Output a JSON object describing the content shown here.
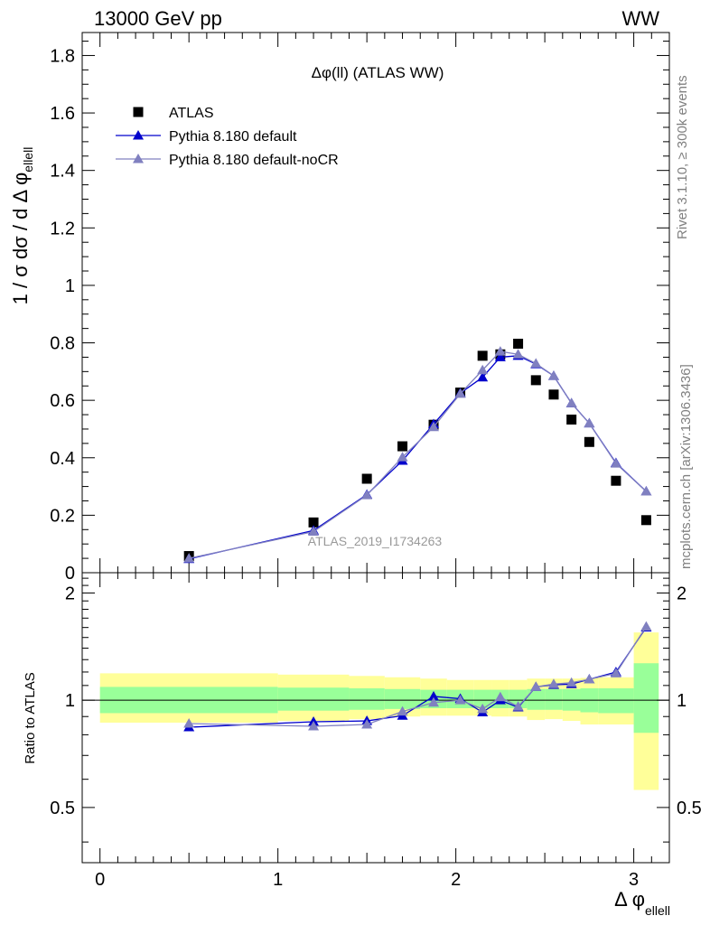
{
  "header": {
    "left": "13000 GeV pp",
    "right": "WW"
  },
  "side_labels": {
    "rivet": "Rivet 3.1.10, ≥ 300k events",
    "mcplots": "mcplots.cern.ch [arXiv:1306.3436]"
  },
  "chart_data": {
    "type": "scatter",
    "title": "Δφ(ll) (ATLAS WW)",
    "watermark": "ATLAS_2019_I1734263",
    "xlabel": "Δ φ",
    "xlabel_sub": "ellell",
    "ylabel": "1 / σ  dσ / d Δ φ",
    "ylabel_sub": "ellell",
    "ratio_ylabel": "Ratio to ATLAS",
    "xlim": [
      -0.1,
      3.2
    ],
    "ylim": [
      0,
      1.88
    ],
    "ratio_ylim": [
      0.35,
      2.28
    ],
    "x_ticks": [
      0,
      1,
      2,
      3
    ],
    "x_tick_labels": [
      "0",
      "1",
      "2",
      "3"
    ],
    "y_ticks": [
      0,
      0.2,
      0.4,
      0.6,
      0.8,
      1,
      1.2,
      1.4,
      1.6,
      1.8
    ],
    "y_tick_labels": [
      "0",
      "0.2",
      "0.4",
      "0.6",
      "0.8",
      "1",
      "1.2",
      "1.4",
      "1.6",
      "1.8"
    ],
    "ratio_ticks": [
      0.5,
      1,
      2
    ],
    "ratio_tick_labels": [
      "0.5",
      "1",
      "2"
    ],
    "legend": [
      "ATLAS",
      "Pythia 8.180 default",
      "Pythia 8.180 default-noCR"
    ],
    "bin_edges": [
      0,
      1,
      1.4,
      1.6,
      1.8,
      1.95,
      2.1,
      2.2,
      2.3,
      2.4,
      2.5,
      2.6,
      2.7,
      2.8,
      3.0,
      3.14
    ],
    "series": [
      {
        "name": "ATLAS",
        "color": "#000000",
        "marker": "square",
        "x": [
          0.5,
          1.2,
          1.5,
          1.7,
          1.875,
          2.025,
          2.15,
          2.25,
          2.35,
          2.45,
          2.55,
          2.65,
          2.75,
          2.9,
          3.07
        ],
        "y": [
          0.058,
          0.175,
          0.327,
          0.44,
          0.515,
          0.627,
          0.755,
          0.76,
          0.797,
          0.67,
          0.62,
          0.533,
          0.455,
          0.32,
          0.183
        ]
      },
      {
        "name": "Pythia 8.180 default",
        "color": "#0000cc",
        "marker": "triangle",
        "x": [
          0.5,
          1.2,
          1.5,
          1.7,
          1.875,
          2.025,
          2.15,
          2.25,
          2.35,
          2.45,
          2.55,
          2.65,
          2.75,
          2.9,
          3.07
        ],
        "y": [
          0.048,
          0.147,
          0.272,
          0.39,
          0.517,
          0.625,
          0.68,
          0.75,
          0.755,
          0.726,
          0.685,
          0.59,
          0.52,
          0.382,
          0.283
        ],
        "ratio": [
          0.84,
          0.87,
          0.875,
          0.905,
          1.025,
          1.01,
          0.925,
          1.0,
          0.955,
          1.09,
          1.105,
          1.11,
          1.145,
          1.2,
          1.6
        ]
      },
      {
        "name": "Pythia 8.180 default-noCR",
        "color": "#8080c0",
        "marker": "triangle",
        "x": [
          0.5,
          1.2,
          1.5,
          1.7,
          1.875,
          2.025,
          2.15,
          2.25,
          2.35,
          2.45,
          2.55,
          2.65,
          2.75,
          2.9,
          3.07
        ],
        "y": [
          0.05,
          0.143,
          0.27,
          0.402,
          0.507,
          0.623,
          0.705,
          0.77,
          0.76,
          0.728,
          0.685,
          0.59,
          0.52,
          0.38,
          0.283
        ],
        "ratio": [
          0.86,
          0.845,
          0.855,
          0.93,
          0.985,
          1.0,
          0.945,
          1.02,
          0.96,
          1.09,
          1.11,
          1.12,
          1.145,
          1.19,
          1.61
        ]
      }
    ],
    "ratio_bands": {
      "yellow_low": [
        0.865,
        0.875,
        0.885,
        0.9,
        0.905,
        0.905,
        0.905,
        0.9,
        0.9,
        0.88,
        0.885,
        0.875,
        0.855,
        0.855,
        0.56
      ],
      "yellow_high": [
        1.19,
        1.18,
        1.17,
        1.16,
        1.15,
        1.14,
        1.14,
        1.14,
        1.14,
        1.15,
        1.15,
        1.15,
        1.155,
        1.16,
        1.55
      ],
      "green_low": [
        0.92,
        0.935,
        0.94,
        0.945,
        0.95,
        0.95,
        0.95,
        0.95,
        0.95,
        0.94,
        0.94,
        0.935,
        0.925,
        0.92,
        0.81
      ],
      "green_high": [
        1.09,
        1.085,
        1.08,
        1.075,
        1.07,
        1.07,
        1.07,
        1.07,
        1.07,
        1.075,
        1.075,
        1.075,
        1.08,
        1.08,
        1.27
      ]
    }
  }
}
